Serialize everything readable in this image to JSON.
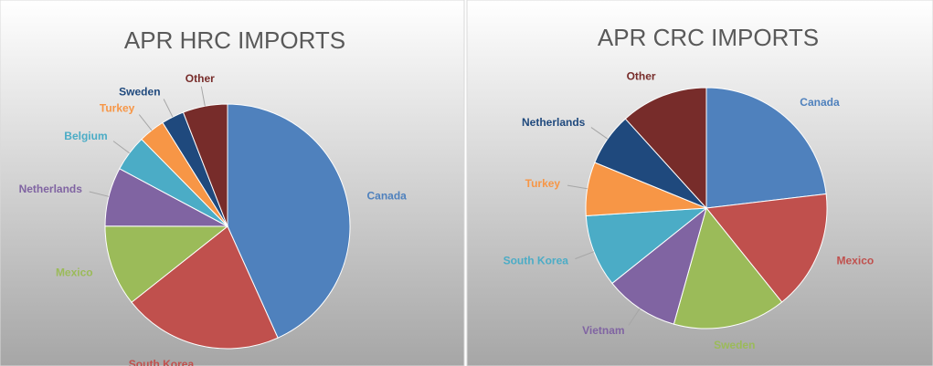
{
  "chart_data": [
    {
      "type": "pie",
      "title": "APR HRC IMPORTS",
      "categories": [
        "Canada",
        "South Korea",
        "Mexico",
        "Netherlands",
        "Belgium",
        "Turkey",
        "Sweden",
        "Other"
      ],
      "values": [
        43.3,
        21.1,
        10.7,
        7.8,
        4.8,
        3.5,
        3.0,
        5.9
      ],
      "colors": [
        "#4f81bd",
        "#c0504d",
        "#9bbb59",
        "#8064a2",
        "#4bacc6",
        "#f79646",
        "#1f497d",
        "#772c2a"
      ]
    },
    {
      "type": "pie",
      "title": "APR CRC IMPORTS",
      "categories": [
        "Canada",
        "Mexico",
        "Sweden",
        "Vietnam",
        "South Korea",
        "Turkey",
        "Netherlands",
        "Other"
      ],
      "values": [
        23.1,
        16.1,
        15.1,
        9.9,
        9.7,
        7.2,
        7.1,
        11.7
      ],
      "colors": [
        "#4f81bd",
        "#c0504d",
        "#9bbb59",
        "#8064a2",
        "#4bacc6",
        "#f79646",
        "#1f497d",
        "#772c2a"
      ]
    }
  ]
}
